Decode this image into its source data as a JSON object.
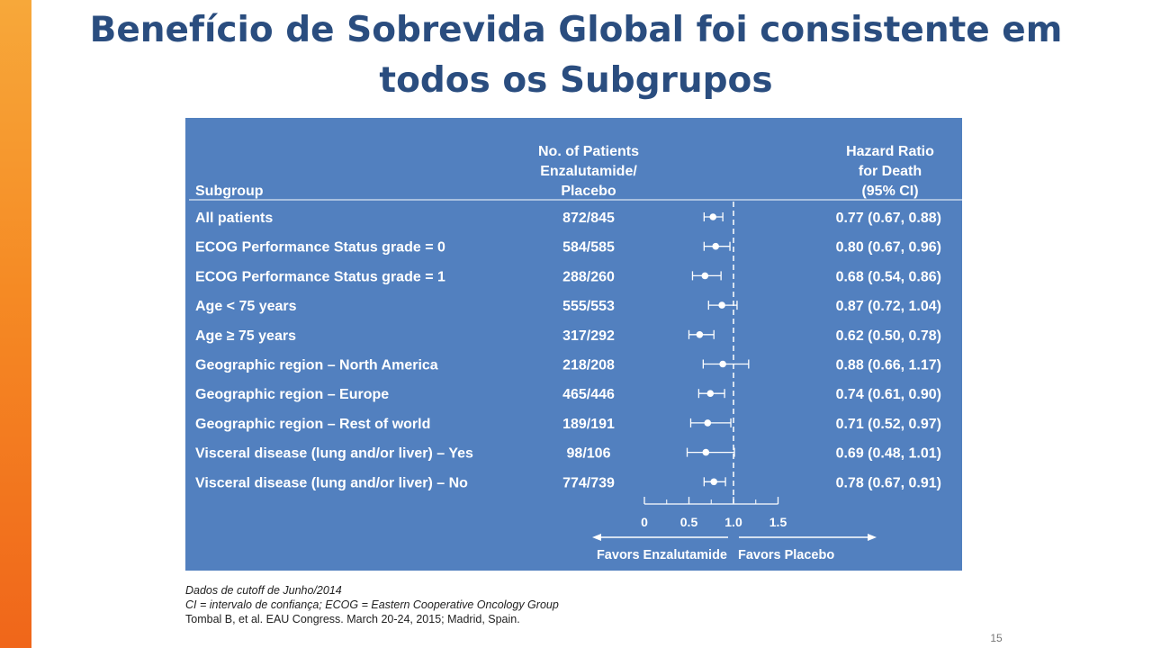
{
  "slide": {
    "title_line1": "Benefício de Sobrevida Global foi consistente em",
    "title_line2": "todos os Subgrupos",
    "page_number": "15",
    "accent_color": "#f58a24",
    "title_color": "#2a4d7f",
    "panel_color": "#5280bf"
  },
  "footnotes": {
    "line1": "Dados de cutoff de Junho/2014",
    "line2": "CI = intervalo de confiança; ECOG = Eastern Cooperative Oncology Group",
    "line3": "Tombal B, et al. EAU Congress. March 20-24, 2015; Madrid, Spain."
  },
  "chart_data": {
    "type": "forest",
    "headers": {
      "subgroup": "Subgroup",
      "patients": [
        "No. of Patients",
        "Enzalutamide/",
        "Placebo"
      ],
      "hr": [
        "Hazard Ratio",
        "for Death",
        "(95% CI)"
      ]
    },
    "rows": [
      {
        "label": "All patients",
        "patients": "872/845",
        "hr": 0.77,
        "lo": 0.67,
        "hi": 0.88,
        "hr_text": "0.77 (0.67, 0.88)"
      },
      {
        "label": "ECOG Performance Status grade = 0",
        "patients": "584/585",
        "hr": 0.8,
        "lo": 0.67,
        "hi": 0.96,
        "hr_text": "0.80 (0.67, 0.96)"
      },
      {
        "label": "ECOG Performance Status grade = 1",
        "patients": "288/260",
        "hr": 0.68,
        "lo": 0.54,
        "hi": 0.86,
        "hr_text": "0.68 (0.54, 0.86)"
      },
      {
        "label": "Age < 75 years",
        "patients": "555/553",
        "hr": 0.87,
        "lo": 0.72,
        "hi": 1.04,
        "hr_text": "0.87 (0.72, 1.04)"
      },
      {
        "label": "Age ≥ 75 years",
        "patients": "317/292",
        "hr": 0.62,
        "lo": 0.5,
        "hi": 0.78,
        "hr_text": "0.62 (0.50, 0.78)"
      },
      {
        "label": "Geographic region – North America",
        "patients": "218/208",
        "hr": 0.88,
        "lo": 0.66,
        "hi": 1.17,
        "hr_text": "0.88 (0.66, 1.17)"
      },
      {
        "label": "Geographic region – Europe",
        "patients": "465/446",
        "hr": 0.74,
        "lo": 0.61,
        "hi": 0.9,
        "hr_text": "0.74 (0.61, 0.90)"
      },
      {
        "label": "Geographic region – Rest of world",
        "patients": "189/191",
        "hr": 0.71,
        "lo": 0.52,
        "hi": 0.97,
        "hr_text": "0.71 (0.52, 0.97)"
      },
      {
        "label": "Visceral disease (lung and/or liver) – Yes",
        "patients": "98/106",
        "hr": 0.69,
        "lo": 0.48,
        "hi": 1.01,
        "hr_text": "0.69 (0.48, 1.01)"
      },
      {
        "label": "Visceral disease (lung and/or liver) – No",
        "patients": "774/739",
        "hr": 0.78,
        "lo": 0.67,
        "hi": 0.91,
        "hr_text": "0.78 (0.67, 0.91)"
      }
    ],
    "x_ticks": [
      0,
      0.5,
      1.0,
      1.5
    ],
    "x_tick_labels": [
      "0",
      "0.5",
      "1.0",
      "1.5"
    ],
    "xlim": [
      0,
      1.5
    ],
    "reference_line": 1.0,
    "favors_left": "Favors Enzalutamide",
    "favors_right": "Favors Placebo"
  }
}
